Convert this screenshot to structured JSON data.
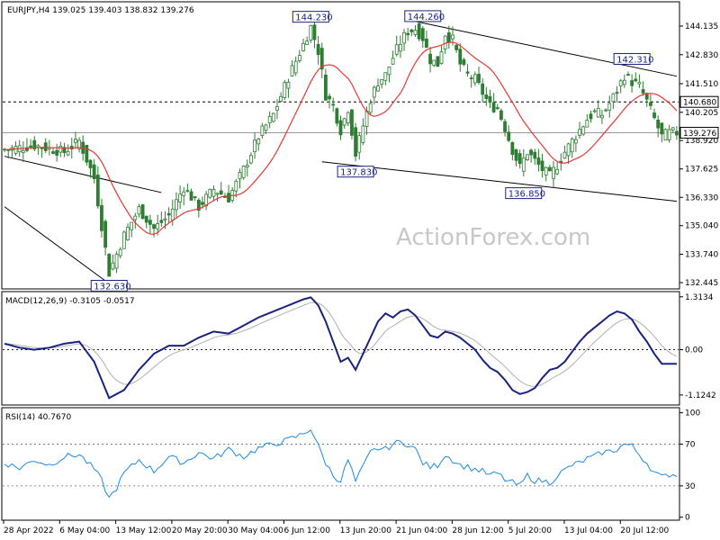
{
  "chart_data": [
    {
      "type": "candlestick",
      "title": "EURJPY,H4  139.025 139.403 138.832 139.276",
      "ylim": [
        132.2,
        145.2
      ],
      "y_ticks": [
        "144.135",
        "142.830",
        "141.510",
        "140.205",
        "138.920",
        "137.625",
        "136.330",
        "135.040",
        "133.740",
        "132.445"
      ],
      "price_flags": [
        {
          "label": "140.680",
          "value": 140.68,
          "style": "line",
          "bg": "#ffffff"
        },
        {
          "label": "139.276",
          "value": 139.276,
          "style": "current",
          "bg": "#ffffff"
        }
      ],
      "swing_labels": [
        {
          "text": "144.230",
          "bar": 82,
          "value": 144.23
        },
        {
          "text": "144.260",
          "bar": 112,
          "value": 144.26
        },
        {
          "text": "142.310",
          "bar": 168,
          "value": 142.31
        },
        {
          "text": "137.830",
          "bar": 94,
          "value": 137.83
        },
        {
          "text": "136.850",
          "bar": 139,
          "value": 136.85
        },
        {
          "text": "132.630",
          "bar": 28,
          "value": 132.63
        }
      ],
      "horizontal_line": 140.68,
      "current_price": 139.276,
      "trendlines": [
        {
          "from": [
            0,
            138.2
          ],
          "to": [
            42,
            136.55
          ]
        },
        {
          "from": [
            0,
            135.9
          ],
          "to": [
            28,
            132.4
          ]
        },
        {
          "from": [
            85,
            137.95
          ],
          "to": [
            180,
            136.15
          ]
        },
        {
          "from": [
            110,
            144.35
          ],
          "to": [
            180,
            141.85
          ]
        }
      ],
      "ma_color": "#e53935",
      "candle_color": "#2e7d32",
      "watermark": "ActionForex.com",
      "x_labels": [
        "28 Apr 2022",
        "6 May 04:00",
        "13 May 12:00",
        "20 May 20:00",
        "30 May 04:00",
        "6 Jun 12:00",
        "13 Jun 20:00",
        "21 Jun 04:00",
        "28 Jun 12:00",
        "5 Jul 20:00",
        "13 Jul 04:00",
        "20 Jul 12:00"
      ],
      "close_path": [
        [
          0,
          138.5
        ],
        [
          8,
          138.7
        ],
        [
          16,
          138.4
        ],
        [
          20,
          138.9
        ],
        [
          24,
          137.2
        ],
        [
          28,
          132.9
        ],
        [
          32,
          134.6
        ],
        [
          36,
          135.8
        ],
        [
          40,
          134.9
        ],
        [
          44,
          135.5
        ],
        [
          48,
          136.8
        ],
        [
          52,
          135.9
        ],
        [
          56,
          136.7
        ],
        [
          60,
          136.3
        ],
        [
          64,
          137.6
        ],
        [
          68,
          139.1
        ],
        [
          72,
          140.1
        ],
        [
          76,
          141.8
        ],
        [
          80,
          143.3
        ],
        [
          82,
          144.1
        ],
        [
          84,
          143.0
        ],
        [
          86,
          141.0
        ],
        [
          88,
          140.5
        ],
        [
          90,
          139.4
        ],
        [
          92,
          140.4
        ],
        [
          94,
          138.3
        ],
        [
          96,
          139.6
        ],
        [
          98,
          140.8
        ],
        [
          100,
          141.6
        ],
        [
          102,
          141.9
        ],
        [
          104,
          142.7
        ],
        [
          106,
          143.4
        ],
        [
          108,
          143.9
        ],
        [
          110,
          144.0
        ],
        [
          112,
          143.6
        ],
        [
          114,
          142.6
        ],
        [
          116,
          142.4
        ],
        [
          118,
          143.8
        ],
        [
          120,
          143.5
        ],
        [
          122,
          142.4
        ],
        [
          124,
          141.9
        ],
        [
          126,
          141.7
        ],
        [
          128,
          141.1
        ],
        [
          130,
          140.5
        ],
        [
          132,
          140.4
        ],
        [
          134,
          139.5
        ],
        [
          136,
          138.5
        ],
        [
          138,
          137.7
        ],
        [
          140,
          138.4
        ],
        [
          142,
          138.0
        ],
        [
          144,
          137.6
        ],
        [
          146,
          137.3
        ],
        [
          148,
          137.8
        ],
        [
          150,
          138.4
        ],
        [
          152,
          138.9
        ],
        [
          154,
          139.4
        ],
        [
          156,
          139.9
        ],
        [
          158,
          140.2
        ],
        [
          160,
          140.1
        ],
        [
          162,
          140.6
        ],
        [
          164,
          141.2
        ],
        [
          166,
          141.9
        ],
        [
          168,
          141.6
        ],
        [
          170,
          141.4
        ],
        [
          172,
          140.7
        ],
        [
          174,
          139.9
        ],
        [
          176,
          139.1
        ],
        [
          178,
          139.276
        ]
      ],
      "bar_count": 181
    },
    {
      "type": "line",
      "title": "MACD(12,26,9) -0.3105 -0.0517",
      "ylim": [
        -1.35,
        1.42
      ],
      "y_ticks": [
        "1.3134",
        "0.00",
        "-1.1242"
      ],
      "macd_color": "#1a237e",
      "signal_color": "#b0b0b0",
      "macd_path": [
        [
          0,
          0.15
        ],
        [
          4,
          0.05
        ],
        [
          8,
          0.0
        ],
        [
          12,
          0.05
        ],
        [
          16,
          0.15
        ],
        [
          20,
          0.2
        ],
        [
          24,
          -0.3
        ],
        [
          28,
          -1.2
        ],
        [
          32,
          -1.0
        ],
        [
          36,
          -0.5
        ],
        [
          40,
          -0.1
        ],
        [
          44,
          0.1
        ],
        [
          48,
          0.1
        ],
        [
          52,
          0.3
        ],
        [
          56,
          0.45
        ],
        [
          60,
          0.4
        ],
        [
          64,
          0.6
        ],
        [
          68,
          0.8
        ],
        [
          72,
          0.95
        ],
        [
          76,
          1.1
        ],
        [
          80,
          1.25
        ],
        [
          82,
          1.3
        ],
        [
          84,
          1.1
        ],
        [
          86,
          0.7
        ],
        [
          88,
          0.2
        ],
        [
          90,
          -0.3
        ],
        [
          92,
          -0.2
        ],
        [
          94,
          -0.5
        ],
        [
          96,
          -0.1
        ],
        [
          98,
          0.3
        ],
        [
          100,
          0.7
        ],
        [
          102,
          0.9
        ],
        [
          104,
          0.8
        ],
        [
          106,
          0.95
        ],
        [
          108,
          1.0
        ],
        [
          110,
          0.85
        ],
        [
          112,
          0.6
        ],
        [
          114,
          0.35
        ],
        [
          116,
          0.3
        ],
        [
          118,
          0.45
        ],
        [
          120,
          0.4
        ],
        [
          122,
          0.3
        ],
        [
          124,
          0.15
        ],
        [
          126,
          0.0
        ],
        [
          128,
          -0.25
        ],
        [
          130,
          -0.45
        ],
        [
          132,
          -0.55
        ],
        [
          134,
          -0.75
        ],
        [
          136,
          -1.0
        ],
        [
          138,
          -1.1
        ],
        [
          140,
          -1.05
        ],
        [
          142,
          -0.95
        ],
        [
          144,
          -0.7
        ],
        [
          146,
          -0.5
        ],
        [
          148,
          -0.45
        ],
        [
          150,
          -0.3
        ],
        [
          152,
          -0.05
        ],
        [
          154,
          0.2
        ],
        [
          156,
          0.4
        ],
        [
          158,
          0.55
        ],
        [
          160,
          0.7
        ],
        [
          162,
          0.85
        ],
        [
          164,
          0.95
        ],
        [
          166,
          0.9
        ],
        [
          168,
          0.75
        ],
        [
          170,
          0.45
        ],
        [
          172,
          0.2
        ],
        [
          174,
          -0.1
        ],
        [
          176,
          -0.35
        ],
        [
          178,
          -0.35
        ]
      ]
    },
    {
      "type": "line",
      "title": "RSI(14) 40.7670",
      "ylim": [
        -2,
        104
      ],
      "y_ticks": [
        "100",
        "70",
        "30",
        "0"
      ],
      "levels": [
        70,
        30
      ],
      "rsi_color": "#1e88e5",
      "rsi_path": [
        [
          0,
          52
        ],
        [
          4,
          47
        ],
        [
          8,
          55
        ],
        [
          12,
          50
        ],
        [
          16,
          58
        ],
        [
          20,
          60
        ],
        [
          24,
          46
        ],
        [
          26,
          35
        ],
        [
          28,
          18
        ],
        [
          30,
          28
        ],
        [
          32,
          42
        ],
        [
          36,
          55
        ],
        [
          40,
          44
        ],
        [
          44,
          58
        ],
        [
          48,
          52
        ],
        [
          52,
          62
        ],
        [
          56,
          56
        ],
        [
          60,
          65
        ],
        [
          64,
          58
        ],
        [
          68,
          66
        ],
        [
          72,
          70
        ],
        [
          76,
          74
        ],
        [
          80,
          80
        ],
        [
          82,
          85
        ],
        [
          84,
          68
        ],
        [
          86,
          52
        ],
        [
          88,
          40
        ],
        [
          90,
          35
        ],
        [
          92,
          55
        ],
        [
          94,
          34
        ],
        [
          96,
          48
        ],
        [
          98,
          62
        ],
        [
          100,
          66
        ],
        [
          102,
          65
        ],
        [
          104,
          70
        ],
        [
          106,
          72
        ],
        [
          108,
          70
        ],
        [
          110,
          65
        ],
        [
          112,
          52
        ],
        [
          114,
          48
        ],
        [
          116,
          50
        ],
        [
          118,
          60
        ],
        [
          120,
          55
        ],
        [
          122,
          50
        ],
        [
          124,
          48
        ],
        [
          126,
          46
        ],
        [
          128,
          44
        ],
        [
          130,
          40
        ],
        [
          132,
          42
        ],
        [
          134,
          36
        ],
        [
          136,
          33
        ],
        [
          138,
          30
        ],
        [
          140,
          40
        ],
        [
          142,
          35
        ],
        [
          144,
          35
        ],
        [
          146,
          33
        ],
        [
          148,
          40
        ],
        [
          150,
          45
        ],
        [
          152,
          50
        ],
        [
          154,
          52
        ],
        [
          156,
          56
        ],
        [
          158,
          58
        ],
        [
          160,
          62
        ],
        [
          162,
          63
        ],
        [
          164,
          65
        ],
        [
          166,
          70
        ],
        [
          168,
          68
        ],
        [
          170,
          60
        ],
        [
          172,
          52
        ],
        [
          174,
          43
        ],
        [
          176,
          38
        ],
        [
          178,
          41
        ]
      ]
    }
  ]
}
